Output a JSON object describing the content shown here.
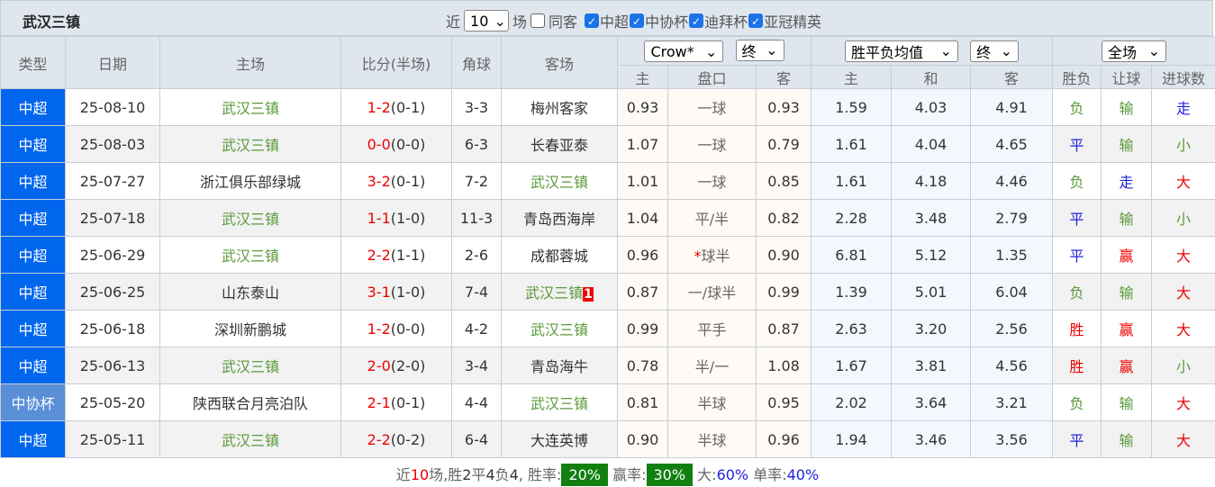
{
  "title": "武汉三镇",
  "filters": {
    "recent_label": "近",
    "recent_count": "10",
    "games_label": "场",
    "same_guest": {
      "label": "同客",
      "checked": false
    },
    "leagues": [
      {
        "label": "中超",
        "checked": true
      },
      {
        "label": "中协杯",
        "checked": true
      },
      {
        "label": "迪拜杯",
        "checked": true
      },
      {
        "label": "亚冠精英",
        "checked": true
      }
    ]
  },
  "headers": {
    "type": "类型",
    "date": "日期",
    "home": "主场",
    "score": "比分(半场)",
    "corner": "角球",
    "away": "客场",
    "ah_company": "Crow*",
    "ah_time": "终",
    "ox_type": "胜平负均值",
    "ox_time": "终",
    "result_scope": "全场",
    "sub": [
      "主",
      "盘口",
      "客",
      "主",
      "和",
      "客",
      "胜负",
      "让球",
      "进球数"
    ]
  },
  "colors": {
    "accent": "#0066ee",
    "green": "#5a9a3a",
    "red": "#e00000",
    "blue": "#2222dd",
    "rate_bg": "#118011"
  },
  "rows": [
    {
      "type": "中超",
      "date": "25-08-10",
      "home": "武汉三镇",
      "home_green": true,
      "score": "1-2",
      "half": "(0-1)",
      "corner": "3-3",
      "away": "梅州客家",
      "away_green": false,
      "ah_h": "0.93",
      "line": "一球",
      "ah_a": "0.93",
      "o1": "1.59",
      "ox": "4.03",
      "o2": "4.91",
      "wl": "负",
      "hc": "输",
      "ou": "走"
    },
    {
      "type": "中超",
      "date": "25-08-03",
      "home": "武汉三镇",
      "home_green": true,
      "score": "0-0",
      "half": "(0-0)",
      "corner": "6-3",
      "away": "长春亚泰",
      "away_green": false,
      "ah_h": "1.07",
      "line": "一球",
      "ah_a": "0.79",
      "o1": "1.61",
      "ox": "4.04",
      "o2": "4.65",
      "wl": "平",
      "hc": "输",
      "ou": "小"
    },
    {
      "type": "中超",
      "date": "25-07-27",
      "home": "浙江俱乐部绿城",
      "home_green": false,
      "score": "3-2",
      "half": "(0-1)",
      "corner": "7-2",
      "away": "武汉三镇",
      "away_green": true,
      "ah_h": "1.01",
      "line": "一球",
      "ah_a": "0.85",
      "o1": "1.61",
      "ox": "4.18",
      "o2": "4.46",
      "wl": "负",
      "hc": "走",
      "ou": "大"
    },
    {
      "type": "中超",
      "date": "25-07-18",
      "home": "武汉三镇",
      "home_green": true,
      "score": "1-1",
      "half": "(1-0)",
      "corner": "11-3",
      "away": "青岛西海岸",
      "away_green": false,
      "ah_h": "1.04",
      "line": "平/半",
      "ah_a": "0.82",
      "o1": "2.28",
      "ox": "3.48",
      "o2": "2.79",
      "wl": "平",
      "hc": "输",
      "ou": "小"
    },
    {
      "type": "中超",
      "date": "25-06-29",
      "home": "武汉三镇",
      "home_green": true,
      "score": "2-2",
      "half": "(1-1)",
      "corner": "2-6",
      "away": "成都蓉城",
      "away_green": false,
      "ah_h": "0.96",
      "line_star": "*",
      "line": "球半",
      "ah_a": "0.90",
      "o1": "6.81",
      "ox": "5.12",
      "o2": "1.35",
      "wl": "平",
      "hc": "赢",
      "ou": "大"
    },
    {
      "type": "中超",
      "date": "25-06-25",
      "home": "山东泰山",
      "home_green": false,
      "score": "3-1",
      "half": "(1-0)",
      "corner": "7-4",
      "away": "武汉三镇",
      "away_green": true,
      "away_badge": "1",
      "ah_h": "0.87",
      "line": "一/球半",
      "ah_a": "0.99",
      "o1": "1.39",
      "ox": "5.01",
      "o2": "6.04",
      "wl": "负",
      "hc": "输",
      "ou": "大"
    },
    {
      "type": "中超",
      "date": "25-06-18",
      "home": "深圳新鹏城",
      "home_green": false,
      "score": "1-2",
      "half": "(0-0)",
      "corner": "4-2",
      "away": "武汉三镇",
      "away_green": true,
      "ah_h": "0.99",
      "line": "平手",
      "ah_a": "0.87",
      "o1": "2.63",
      "ox": "3.20",
      "o2": "2.56",
      "wl": "胜",
      "hc": "赢",
      "ou": "大"
    },
    {
      "type": "中超",
      "date": "25-06-13",
      "home": "武汉三镇",
      "home_green": true,
      "score": "2-0",
      "half": "(2-0)",
      "corner": "3-4",
      "away": "青岛海牛",
      "away_green": false,
      "ah_h": "0.78",
      "line": "半/一",
      "ah_a": "1.08",
      "o1": "1.67",
      "ox": "3.81",
      "o2": "4.56",
      "wl": "胜",
      "hc": "赢",
      "ou": "小"
    },
    {
      "type": "中协杯",
      "date": "25-05-20",
      "home": "陕西联合月亮泊队",
      "home_green": false,
      "score": "2-1",
      "half": "(0-1)",
      "corner": "4-4",
      "away": "武汉三镇",
      "away_green": true,
      "ah_h": "0.81",
      "line": "半球",
      "ah_a": "0.95",
      "o1": "2.02",
      "ox": "3.64",
      "o2": "3.21",
      "wl": "负",
      "hc": "输",
      "ou": "大"
    },
    {
      "type": "中超",
      "date": "25-05-11",
      "home": "武汉三镇",
      "home_green": true,
      "score": "2-2",
      "half": "(0-2)",
      "corner": "6-4",
      "away": "大连英博",
      "away_green": false,
      "ah_h": "0.90",
      "line": "半球",
      "ah_a": "0.96",
      "o1": "1.94",
      "ox": "3.46",
      "o2": "3.56",
      "wl": "平",
      "hc": "输",
      "ou": "大"
    }
  ],
  "footer": {
    "p1": "近",
    "n": "10",
    "p2": "场,胜",
    "w": "2",
    "p3": "平",
    "d": "4",
    "p4": "负",
    "l": "4",
    "p5": ", 胜率:",
    "win_rate": "20%",
    "p6": "赢率:",
    "cover_rate": "30%",
    "p7": "大:",
    "over_rate": "60%",
    "p8": "单率:",
    "odd_rate": "40%"
  }
}
